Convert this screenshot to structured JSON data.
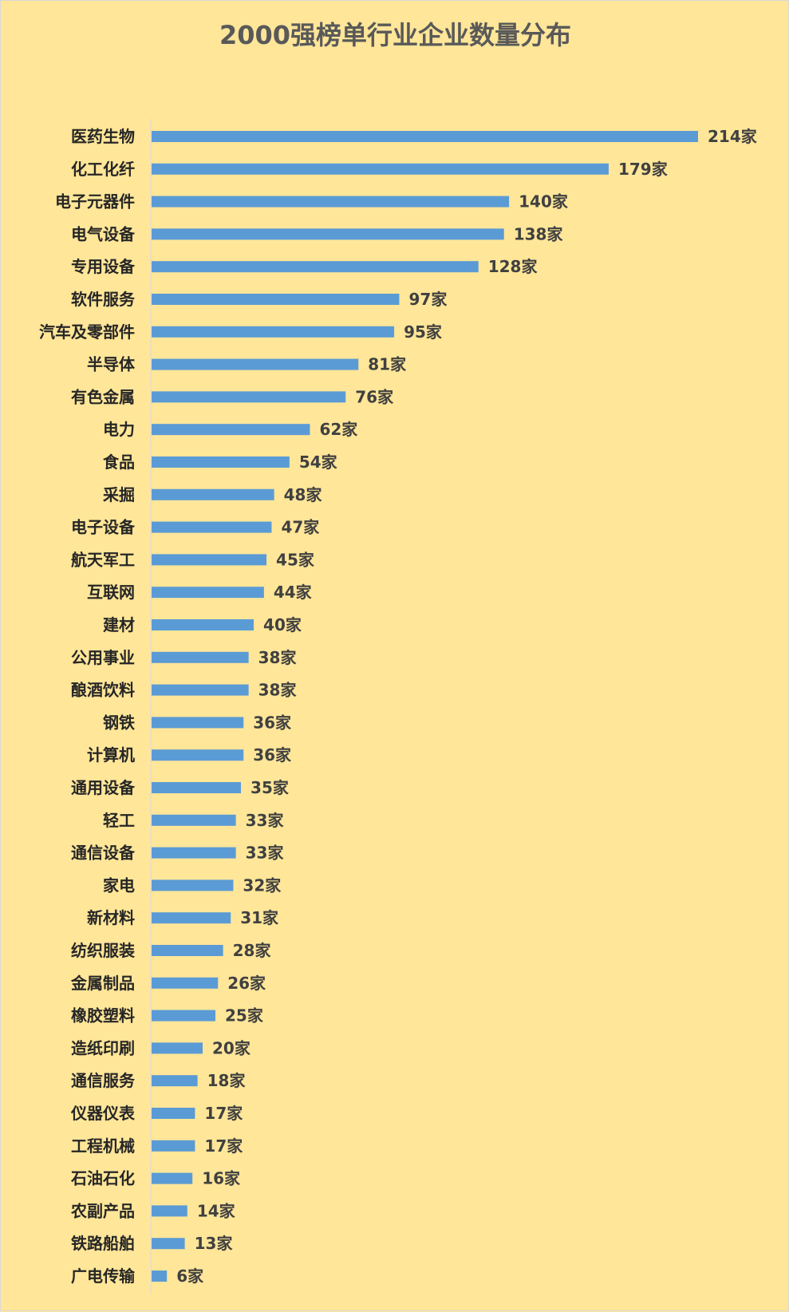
{
  "chart_data": {
    "type": "bar",
    "orientation": "horizontal",
    "title": "2000强榜单行业企业数量分布",
    "value_suffix": "家",
    "categories": [
      "医药生物",
      "化工化纤",
      "电子元器件",
      "电气设备",
      "专用设备",
      "软件服务",
      "汽车及零部件",
      "半导体",
      "有色金属",
      "电力",
      "食品",
      "采掘",
      "电子设备",
      "航天军工",
      "互联网",
      "建材",
      "公用事业",
      "酿酒饮料",
      "钢铁",
      "计算机",
      "通用设备",
      "轻工",
      "通信设备",
      "家电",
      "新材料",
      "纺织服装",
      "金属制品",
      "橡胶塑料",
      "造纸印刷",
      "通信服务",
      "仪器仪表",
      "工程机械",
      "石油石化",
      "农副产品",
      "铁路船舶",
      "广电传输"
    ],
    "values": [
      214,
      179,
      140,
      138,
      128,
      97,
      95,
      81,
      76,
      62,
      54,
      48,
      47,
      45,
      44,
      40,
      38,
      38,
      36,
      36,
      35,
      33,
      33,
      32,
      31,
      28,
      26,
      25,
      20,
      18,
      17,
      17,
      16,
      14,
      13,
      6
    ],
    "xlim": [
      0,
      214
    ],
    "bar_color": "#5b9bd5",
    "background_color": "#ffe699",
    "legend": "none",
    "grid": false
  }
}
